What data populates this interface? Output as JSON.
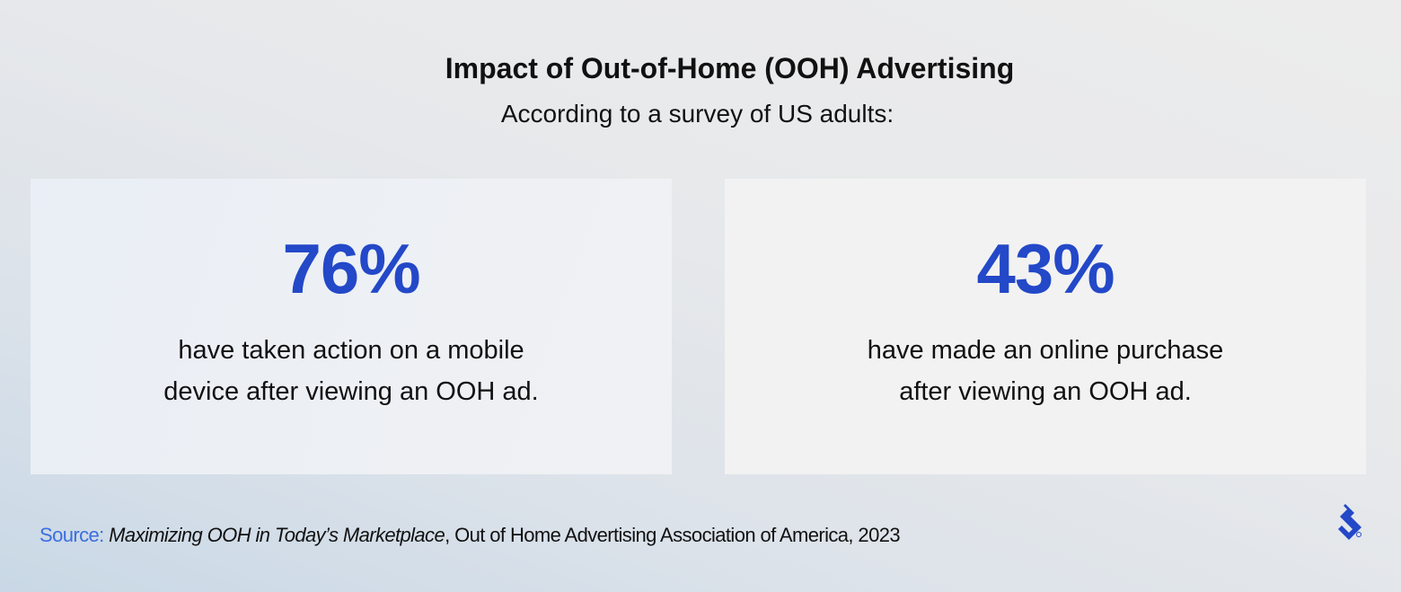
{
  "header": {
    "title": "Impact of Out-of-Home (OOH) Advertising",
    "subtitle": "According to a survey of US adults:"
  },
  "stats": [
    {
      "value": "76%",
      "lines": [
        "have taken action on a mobile",
        "device after viewing an OOH ad."
      ]
    },
    {
      "value": "43%",
      "lines": [
        "have made an online purchase",
        "after viewing an OOH ad."
      ]
    }
  ],
  "source": {
    "label": "Source:",
    "title": "Maximizing OOH in Today’s Marketplace",
    "rest": ", Out of Home Advertising Association of America, 2023"
  }
}
